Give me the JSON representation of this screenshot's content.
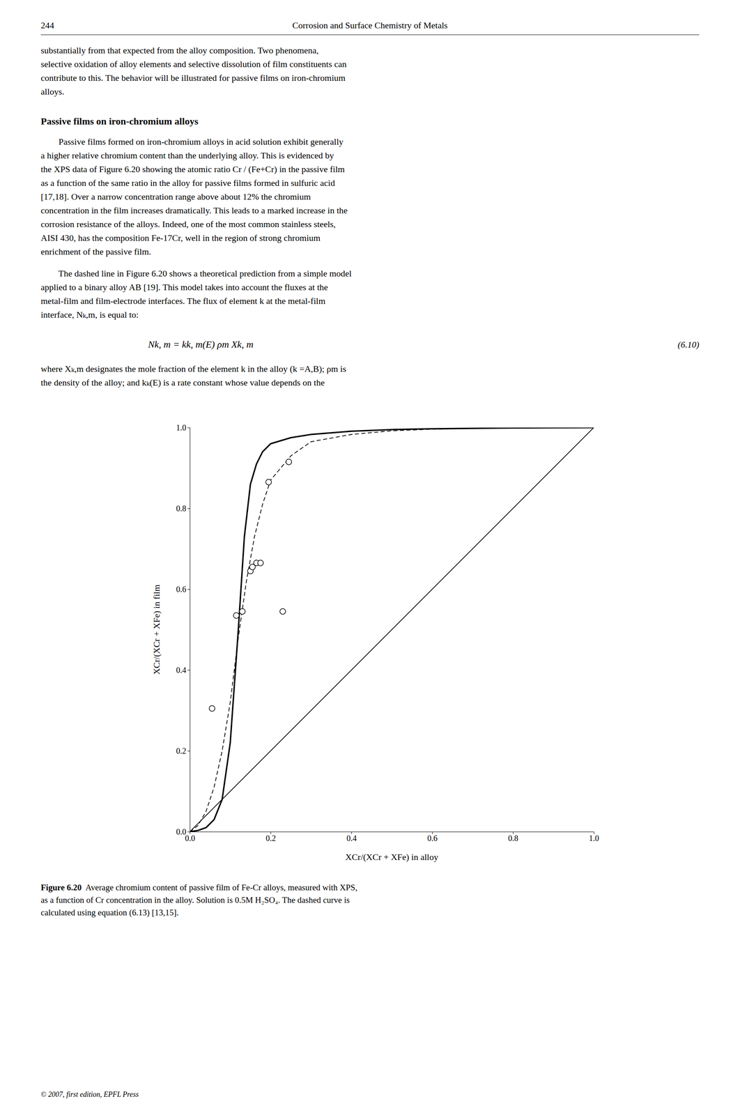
{
  "header_number": "244",
  "header_title": "Corrosion and Surface Chemistry of Metals",
  "body": [
    {
      "lines": [
        "substantially from that expected from the alloy composition. Two phenomena,",
        "selective oxidation of alloy elements and selective dissolution of film constituents can",
        "contribute to this. The behavior will be illustrated for passive films on iron-chromium",
        "alloys."
      ]
    },
    {
      "heading": "Passive films on iron-chromium alloys"
    },
    {
      "lines": [
        "        Passive films formed on iron-chromium alloys in acid solution exhibit generally",
        "a higher relative chromium content than the underlying alloy. This is evidenced by",
        "the XPS data of Figure 6.20 showing the atomic ratio Cr / (Fe+Cr) in the passive film",
        "as a function of the same ratio in the alloy for passive films formed in sulfuric acid",
        "[17,18]. Over a narrow concentration range above about 12% the chromium",
        "concentration in the film increases dramatically. This leads to a marked increase in the",
        "corrosion resistance of the alloys. Indeed, one of the most common stainless steels,",
        "AISI 430, has the composition Fe-17Cr, well in the region of strong chromium",
        "enrichment of the passive film."
      ]
    },
    {
      "lines": [
        "        The dashed line in Figure 6.20 shows a theoretical prediction from a simple model",
        "applied to a binary alloy AB [19]. This model takes into account the fluxes at the",
        "metal-film and film-electrode interfaces. The flux of element k at the metal-film",
        "interface, Nₖ,m, is equal to:"
      ]
    },
    {
      "equation": "Nk, m = kk, m(E) ρm Xk, m",
      "number": "(6.10)"
    },
    {
      "lines": [
        "where Xₖ,m designates the mole fraction of the element k in the alloy (k =A,B); ρm is",
        "the density of the alloy; and kₖ(E) is a rate constant whose value depends on the"
      ]
    }
  ],
  "chart_data": {
    "type": "line",
    "xlabel": "XCr/(XCr + XFe) in alloy",
    "ylabel": "XCr/(XCr + XFe) in film",
    "xlim": [
      0,
      1.0
    ],
    "ylim": [
      0,
      1.0
    ],
    "xticks": [
      {
        "value": 0,
        "label": "0.0"
      },
      0.2,
      0.4,
      0.6,
      0.8,
      {
        "value": 1.0,
        "label": "1.0"
      }
    ],
    "yticks": [
      {
        "value": 0,
        "label": "0.0"
      },
      0.2,
      0.4,
      0.6,
      0.8,
      {
        "value": 1.0,
        "label": "1.0"
      }
    ],
    "grid": false,
    "series": [
      {
        "type": "line",
        "line_style": "solid",
        "color": "#000000",
        "x": [
          0,
          1
        ],
        "values": [
          0,
          1
        ]
      },
      {
        "type": "line",
        "line_style": "dashed",
        "color": "#000000",
        "x": [
          0.0,
          0.02,
          0.04,
          0.06,
          0.08,
          0.1,
          0.12,
          0.14,
          0.16,
          0.18,
          0.2,
          0.25,
          0.3,
          0.4,
          0.5,
          0.6,
          0.7,
          0.8,
          0.9,
          1.0
        ],
        "values": [
          0.0,
          0.015,
          0.05,
          0.11,
          0.2,
          0.32,
          0.48,
          0.62,
          0.73,
          0.81,
          0.87,
          0.93,
          0.965,
          0.983,
          0.992,
          0.996,
          0.998,
          0.999,
          1.0,
          1.0
        ]
      },
      {
        "type": "line",
        "line_style": "thick",
        "color": "#000000",
        "x": [
          0.0,
          0.02,
          0.04,
          0.06,
          0.08,
          0.1,
          0.12,
          0.135,
          0.15,
          0.165,
          0.18,
          0.2,
          0.25,
          0.3,
          0.4,
          0.5,
          0.6,
          0.7,
          0.8,
          0.9,
          1.0
        ],
        "values": [
          0.0,
          0.003,
          0.01,
          0.03,
          0.08,
          0.22,
          0.5,
          0.73,
          0.86,
          0.91,
          0.94,
          0.96,
          0.975,
          0.983,
          0.991,
          0.995,
          0.997,
          0.998,
          0.999,
          0.9995,
          1.0
        ]
      },
      {
        "type": "scatter",
        "marker": "circle",
        "color": "#000000",
        "x": [
          0.055,
          0.115,
          0.13,
          0.15,
          0.155,
          0.165,
          0.175,
          0.195,
          0.23,
          0.245
        ],
        "values": [
          0.305,
          0.535,
          0.545,
          0.645,
          0.655,
          0.665,
          0.665,
          0.865,
          0.545,
          0.915
        ]
      }
    ]
  },
  "caption": {
    "label": "Figure 6.20",
    "lines": [
      "  Average chromium content of passive film of Fe-Cr alloys, measured with XPS,",
      "as a function of Cr concentration in the alloy. Solution is 0.5M H₂SO₄. The dashed curve is",
      "calculated using equation (6.13) [13,15]."
    ]
  },
  "copyright": "© 2007, first edition, EPFL Press"
}
